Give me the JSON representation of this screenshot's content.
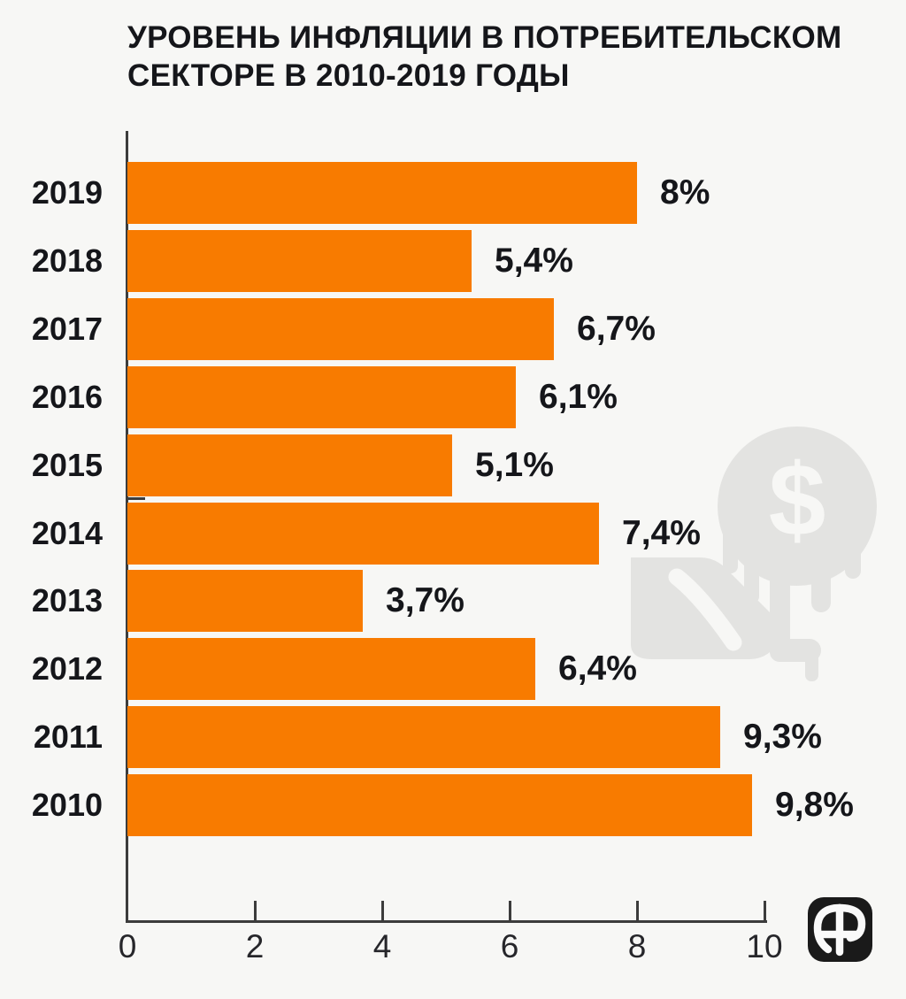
{
  "title_lines": [
    "УРОВЕНЬ ИНФЛЯЦИИ В ПОТРЕБИТЕЛЬСКОМ",
    "СЕКТОРЕ В 2010-2019 ГОДЫ"
  ],
  "chart_data": {
    "type": "bar",
    "orientation": "horizontal",
    "title": "УРОВЕНЬ ИНФЛЯЦИИ В ПОТРЕБИТЕЛЬСКОМ СЕКТОРЕ В 2010-2019 ГОДЫ",
    "categories": [
      "2019",
      "2018",
      "2017",
      "2016",
      "2015",
      "2014",
      "2013",
      "2012",
      "2011",
      "2010"
    ],
    "values": [
      8,
      5.4,
      6.7,
      6.1,
      5.1,
      7.4,
      3.7,
      6.4,
      9.3,
      9.8
    ],
    "value_labels": [
      "8%",
      "5,4%",
      "6,7%",
      "6,1%",
      "5,1%",
      "7,4%",
      "3,7%",
      "6,4%",
      "9,3%",
      "9,8%"
    ],
    "x_ticks": [
      0,
      2,
      4,
      6,
      8,
      10
    ],
    "x_tick_labels": [
      "0",
      "2",
      "4",
      "6",
      "8",
      "10"
    ],
    "xlim": [
      0,
      10
    ],
    "ylabel": "",
    "xlabel": "",
    "grid": false,
    "legend": false,
    "bar_color": "#f87b00"
  },
  "watermark": {
    "name": "melting-dollar-coin-over-hand",
    "dollar_glyph": "$",
    "color": "#e3e3e1"
  },
  "logo": {
    "name": "publisher-monogram",
    "bg_color": "#1a1a1a",
    "mark_color": "#fafafa"
  },
  "colors": {
    "background": "#f7f7f5",
    "text": "#15161a",
    "axis": "#3c3c3c"
  }
}
